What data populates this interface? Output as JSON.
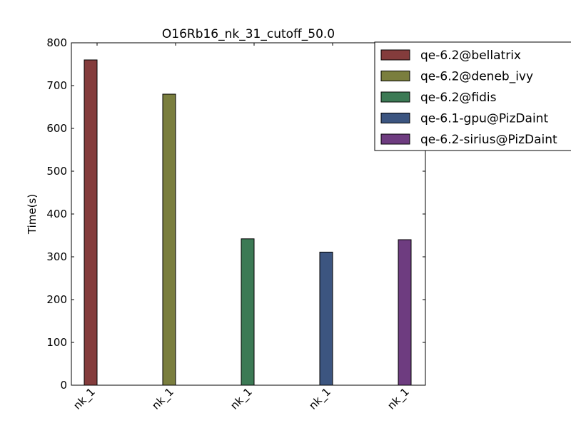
{
  "chart_data": {
    "type": "bar",
    "title": "O16Rb16_nk_31_cutoff_50.0",
    "xlabel": "",
    "ylabel": "Time(s)",
    "ylim": [
      0,
      800
    ],
    "yticks": [
      0,
      100,
      200,
      300,
      400,
      500,
      600,
      700,
      800
    ],
    "categories": [
      "nk_1",
      "nk_1",
      "nk_1",
      "nk_1",
      "nk_1"
    ],
    "series": [
      {
        "name": "qe-6.2@bellatrix",
        "color": "#843c3c",
        "values": [
          760,
          null,
          null,
          null,
          null
        ]
      },
      {
        "name": "qe-6.2@deneb_ivy",
        "color": "#7a7e3e",
        "values": [
          null,
          680,
          null,
          null,
          null
        ]
      },
      {
        "name": "qe-6.2@fidis",
        "color": "#3c7a55",
        "values": [
          null,
          null,
          342,
          null,
          null
        ]
      },
      {
        "name": "qe-6.1-gpu@PizDaint",
        "color": "#3c5580",
        "values": [
          null,
          null,
          null,
          311,
          null
        ]
      },
      {
        "name": "qe-6.2-sirius@PizDaint",
        "color": "#6e3c80",
        "values": [
          null,
          null,
          null,
          null,
          340
        ]
      }
    ],
    "grid": false,
    "legend_position": "top-right"
  }
}
